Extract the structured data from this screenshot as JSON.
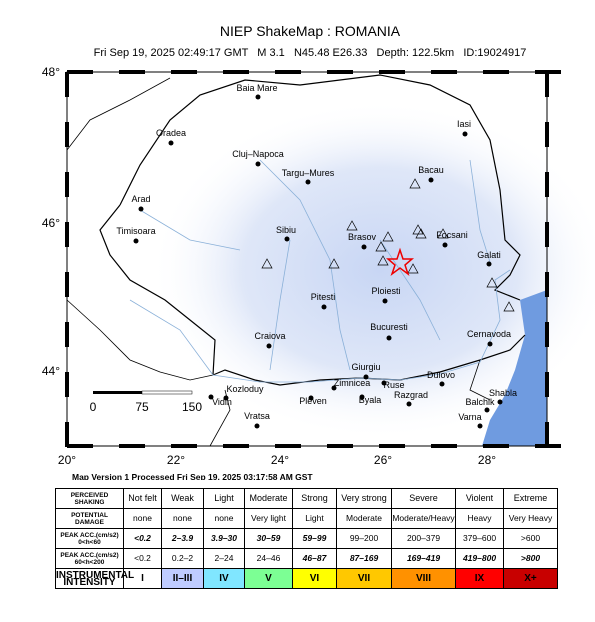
{
  "header": {
    "title": "NIEP ShakeMap : ROMANIA",
    "subtitle": "Fri Sep 19, 2025 02:49:17 GMT   M 3.1   N45.48 E26.33   Depth: 122.5km   ID:19024917"
  },
  "map": {
    "lat_labels": [
      "48°",
      "46°",
      "44°"
    ],
    "lon_labels": [
      "20°",
      "22°",
      "24°",
      "26°",
      "28°"
    ],
    "scale_labels": [
      "0",
      "75",
      "150"
    ],
    "cities": [
      "Baia Mare",
      "Oradea",
      "Cluj–Napoca",
      "Targu–Mures",
      "Iasi",
      "Bacau",
      "Arad",
      "Sibiu",
      "Brasov",
      "Focsani",
      "Galati",
      "Timisoara",
      "Ploiesti",
      "Pitesti",
      "Bucuresti",
      "Craiova",
      "Cernavoda",
      "Giurgiu",
      "Zimnicea",
      "Ruse",
      "Dulovo",
      "Kozloduy",
      "Vidin",
      "Pleven",
      "Byala",
      "Razgrad",
      "Shabla",
      "Balchik",
      "Vratsa",
      "Varna"
    ]
  },
  "footer": {
    "version_note": "Map Version 1 Processed Fri Sep 19, 2025 03:17:58 AM GST"
  },
  "table": {
    "rows": [
      [
        "PERCEIVED\nSHAKING",
        "Not felt",
        "Weak",
        "Light",
        "Moderate",
        "Strong",
        "Very strong",
        "Severe",
        "Violent",
        "Extreme"
      ],
      [
        "POTENTIAL\nDAMAGE",
        "none",
        "none",
        "none",
        "Very light",
        "Light",
        "Moderate",
        "Moderate/Heavy",
        "Heavy",
        "Very Heavy"
      ],
      [
        "PEAK ACC.(cm/s2)\n0<h<60",
        "<0.2",
        "2–3.9",
        "3.9–30",
        "30–59",
        "59–99",
        "99–200",
        "200–379",
        "379–600",
        ">600"
      ],
      [
        "PEAK ACC.(cm/s2)\n60<h<200",
        "<0.2",
        "0.2–2",
        "2–24",
        "24–46",
        "46–87",
        "87–169",
        "169–419",
        "419–800",
        ">800"
      ],
      [
        "INSTRUMENTAL\nINTENSITY",
        "I",
        "II–III",
        "IV",
        "V",
        "VI",
        "VII",
        "VIII",
        "IX",
        "X+"
      ]
    ]
  }
}
